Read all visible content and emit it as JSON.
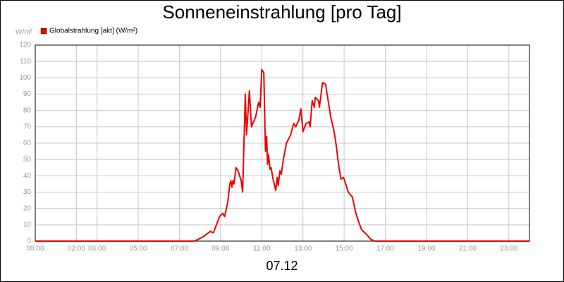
{
  "chart_data": {
    "type": "line",
    "title": "Sonneneinstrahlung [pro Tag]",
    "ylabel": "W/m²",
    "xlabel": "07.12",
    "legend": "top-left",
    "grid": true,
    "xlim": [
      0,
      24
    ],
    "ylim": [
      0,
      120
    ],
    "yticks": [
      0,
      10,
      20,
      30,
      40,
      50,
      60,
      70,
      80,
      90,
      100,
      110,
      120
    ],
    "xticks": [
      {
        "value": 0,
        "label": "00:00"
      },
      {
        "value": 2,
        "label": "02:00"
      },
      {
        "value": 3,
        "label": "03:00"
      },
      {
        "value": 5,
        "label": "05:00"
      },
      {
        "value": 7,
        "label": "07:00"
      },
      {
        "value": 9,
        "label": "09:00"
      },
      {
        "value": 11,
        "label": "11:00"
      },
      {
        "value": 13,
        "label": "13:00"
      },
      {
        "value": 15,
        "label": "15:00"
      },
      {
        "value": 17,
        "label": "17:00"
      },
      {
        "value": 19,
        "label": "19:00"
      },
      {
        "value": 21,
        "label": "21:00"
      },
      {
        "value": 23,
        "label": "23:00"
      }
    ],
    "x": [
      0,
      7.7,
      7.9,
      8.2,
      8.5,
      8.65,
      8.8,
      8.95,
      9.1,
      9.2,
      9.35,
      9.45,
      9.5,
      9.55,
      9.6,
      9.65,
      9.75,
      9.85,
      10.0,
      10.07,
      10.2,
      10.26,
      10.4,
      10.5,
      10.7,
      10.85,
      10.92,
      11.0,
      11.1,
      11.18,
      11.24,
      11.28,
      11.33,
      11.4,
      11.45,
      11.55,
      11.68,
      11.75,
      11.8,
      11.88,
      11.95,
      12.05,
      12.2,
      12.4,
      12.55,
      12.65,
      12.8,
      12.9,
      13.0,
      13.15,
      13.3,
      13.35,
      13.45,
      13.55,
      13.6,
      13.75,
      13.8,
      13.95,
      14.1,
      14.2,
      14.35,
      14.5,
      14.6,
      14.75,
      14.85,
      14.97,
      15.05,
      15.2,
      15.4,
      15.55,
      15.7,
      15.85,
      16.1,
      16.3,
      16.5,
      24
    ],
    "series": [
      {
        "name": "Globalstrahlung [akt] (W/m²)",
        "color": "#ee0000",
        "values": [
          0,
          0,
          1,
          3,
          6,
          5,
          10,
          15,
          17,
          15,
          24,
          35,
          37,
          33,
          37,
          35,
          45,
          43,
          37,
          30,
          90,
          65,
          92,
          70,
          76,
          85,
          82,
          105,
          103,
          55,
          64,
          47,
          53,
          44,
          45,
          38,
          31,
          39,
          34,
          43,
          41,
          50,
          60,
          65,
          72,
          70,
          74,
          81,
          67,
          72,
          73,
          70,
          86,
          82,
          88,
          86,
          82,
          97,
          96,
          88,
          76,
          68,
          60,
          45,
          38,
          39,
          36,
          30,
          27,
          18,
          12,
          7,
          4,
          1,
          0,
          0
        ]
      }
    ]
  }
}
